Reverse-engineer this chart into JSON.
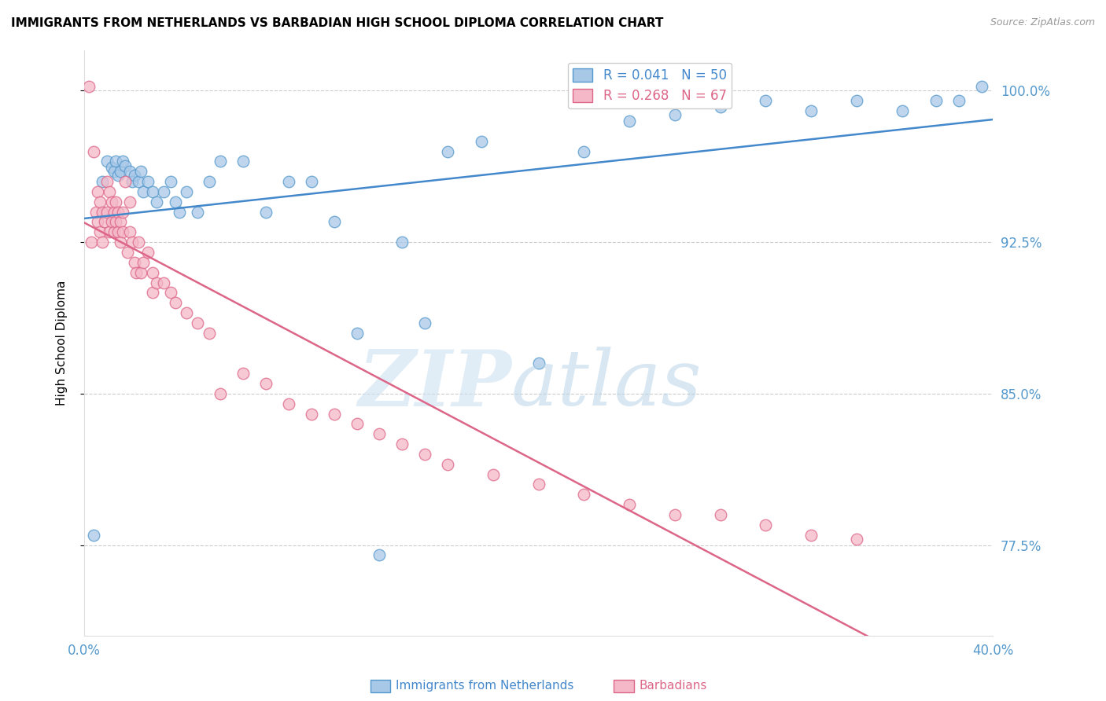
{
  "title": "IMMIGRANTS FROM NETHERLANDS VS BARBADIAN HIGH SCHOOL DIPLOMA CORRELATION CHART",
  "source": "Source: ZipAtlas.com",
  "ylabel": "High School Diploma",
  "yticks": [
    77.5,
    85.0,
    92.5,
    100.0
  ],
  "ytick_labels": [
    "77.5%",
    "85.0%",
    "92.5%",
    "100.0%"
  ],
  "xlim": [
    0.0,
    40.0
  ],
  "ylim": [
    73.0,
    102.0
  ],
  "legend1_r": "0.041",
  "legend1_n": "50",
  "legend2_r": "0.268",
  "legend2_n": "67",
  "color_blue_fill": "#a8c8e8",
  "color_blue_edge": "#5599cc",
  "color_blue_line": "#4488cc",
  "color_pink_fill": "#f4b8c8",
  "color_pink_edge": "#dd6688",
  "color_pink_line": "#dd6688",
  "color_blue_text": "#4488cc",
  "color_pink_text": "#dd6688",
  "color_axis_text": "#5599cc",
  "blue_x": [
    0.4,
    0.8,
    1.0,
    1.2,
    1.3,
    1.4,
    1.5,
    1.6,
    1.7,
    1.8,
    2.0,
    2.1,
    2.2,
    2.4,
    2.5,
    2.6,
    2.8,
    3.0,
    3.2,
    3.5,
    3.8,
    4.0,
    4.2,
    4.5,
    5.0,
    5.5,
    6.0,
    7.0,
    8.0,
    9.0,
    10.0,
    11.0,
    12.0,
    13.0,
    14.0,
    15.0,
    16.0,
    17.5,
    20.0,
    22.0,
    24.0,
    26.0,
    28.0,
    30.0,
    32.0,
    34.0,
    36.0,
    37.5,
    38.5,
    39.5
  ],
  "blue_y": [
    78.0,
    95.5,
    96.5,
    96.2,
    96.0,
    96.5,
    95.8,
    96.0,
    96.5,
    96.3,
    96.0,
    95.5,
    95.8,
    95.5,
    96.0,
    95.0,
    95.5,
    95.0,
    94.5,
    95.0,
    95.5,
    94.5,
    94.0,
    95.0,
    94.0,
    95.5,
    96.5,
    96.5,
    94.0,
    95.5,
    95.5,
    93.5,
    88.0,
    77.0,
    92.5,
    88.5,
    97.0,
    97.5,
    86.5,
    97.0,
    98.5,
    98.8,
    99.2,
    99.5,
    99.0,
    99.5,
    99.0,
    99.5,
    99.5,
    100.2
  ],
  "pink_x": [
    0.2,
    0.3,
    0.4,
    0.5,
    0.6,
    0.6,
    0.7,
    0.7,
    0.8,
    0.8,
    0.9,
    1.0,
    1.0,
    1.1,
    1.1,
    1.2,
    1.2,
    1.3,
    1.3,
    1.4,
    1.4,
    1.5,
    1.5,
    1.6,
    1.6,
    1.7,
    1.7,
    1.8,
    1.9,
    2.0,
    2.0,
    2.1,
    2.2,
    2.3,
    2.4,
    2.5,
    2.6,
    2.8,
    3.0,
    3.0,
    3.2,
    3.5,
    3.8,
    4.0,
    4.5,
    5.0,
    5.5,
    6.0,
    7.0,
    8.0,
    9.0,
    10.0,
    11.0,
    12.0,
    13.0,
    14.0,
    15.0,
    16.0,
    18.0,
    20.0,
    22.0,
    24.0,
    26.0,
    28.0,
    30.0,
    32.0,
    34.0
  ],
  "pink_y": [
    100.2,
    92.5,
    97.0,
    94.0,
    93.5,
    95.0,
    94.5,
    93.0,
    94.0,
    92.5,
    93.5,
    94.0,
    95.5,
    93.0,
    95.0,
    94.5,
    93.5,
    94.0,
    93.0,
    94.5,
    93.5,
    93.0,
    94.0,
    93.5,
    92.5,
    93.0,
    94.0,
    95.5,
    92.0,
    93.0,
    94.5,
    92.5,
    91.5,
    91.0,
    92.5,
    91.0,
    91.5,
    92.0,
    91.0,
    90.0,
    90.5,
    90.5,
    90.0,
    89.5,
    89.0,
    88.5,
    88.0,
    85.0,
    86.0,
    85.5,
    84.5,
    84.0,
    84.0,
    83.5,
    83.0,
    82.5,
    82.0,
    81.5,
    81.0,
    80.5,
    80.0,
    79.5,
    79.0,
    79.0,
    78.5,
    78.0,
    77.8
  ]
}
